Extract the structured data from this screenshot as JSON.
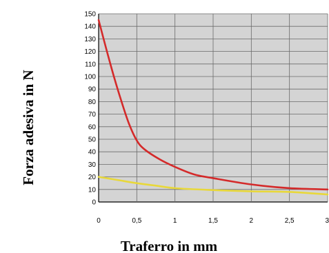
{
  "chart_data": {
    "type": "line",
    "xlabel": "Traferro in mm",
    "ylabel": "Forza adesiva in N",
    "xlim": [
      0,
      3
    ],
    "ylim": [
      0,
      150
    ],
    "x_ticks": [
      "0",
      "0,5",
      "1",
      "1,5",
      "2",
      "2,5",
      "3"
    ],
    "y_ticks": [
      "0",
      "10",
      "20",
      "30",
      "40",
      "50",
      "60",
      "70",
      "80",
      "90",
      "100",
      "110",
      "120",
      "130",
      "140",
      "150"
    ],
    "grid": true,
    "series": [
      {
        "color": "#d42a2a",
        "x": [
          0,
          0.1,
          0.2,
          0.3,
          0.4,
          0.5,
          0.6,
          0.8,
          1.0,
          1.25,
          1.5,
          2.0,
          2.5,
          3.0
        ],
        "y": [
          145,
          122,
          100,
          80,
          62,
          49,
          42,
          34,
          28,
          22,
          19,
          14,
          11,
          10
        ]
      },
      {
        "color": "#e8d83a",
        "x": [
          0,
          0.25,
          0.5,
          0.75,
          1.0,
          1.5,
          2.0,
          2.5,
          3.0
        ],
        "y": [
          20,
          17.5,
          15,
          13,
          11,
          9.5,
          8.5,
          8,
          6
        ]
      }
    ]
  }
}
